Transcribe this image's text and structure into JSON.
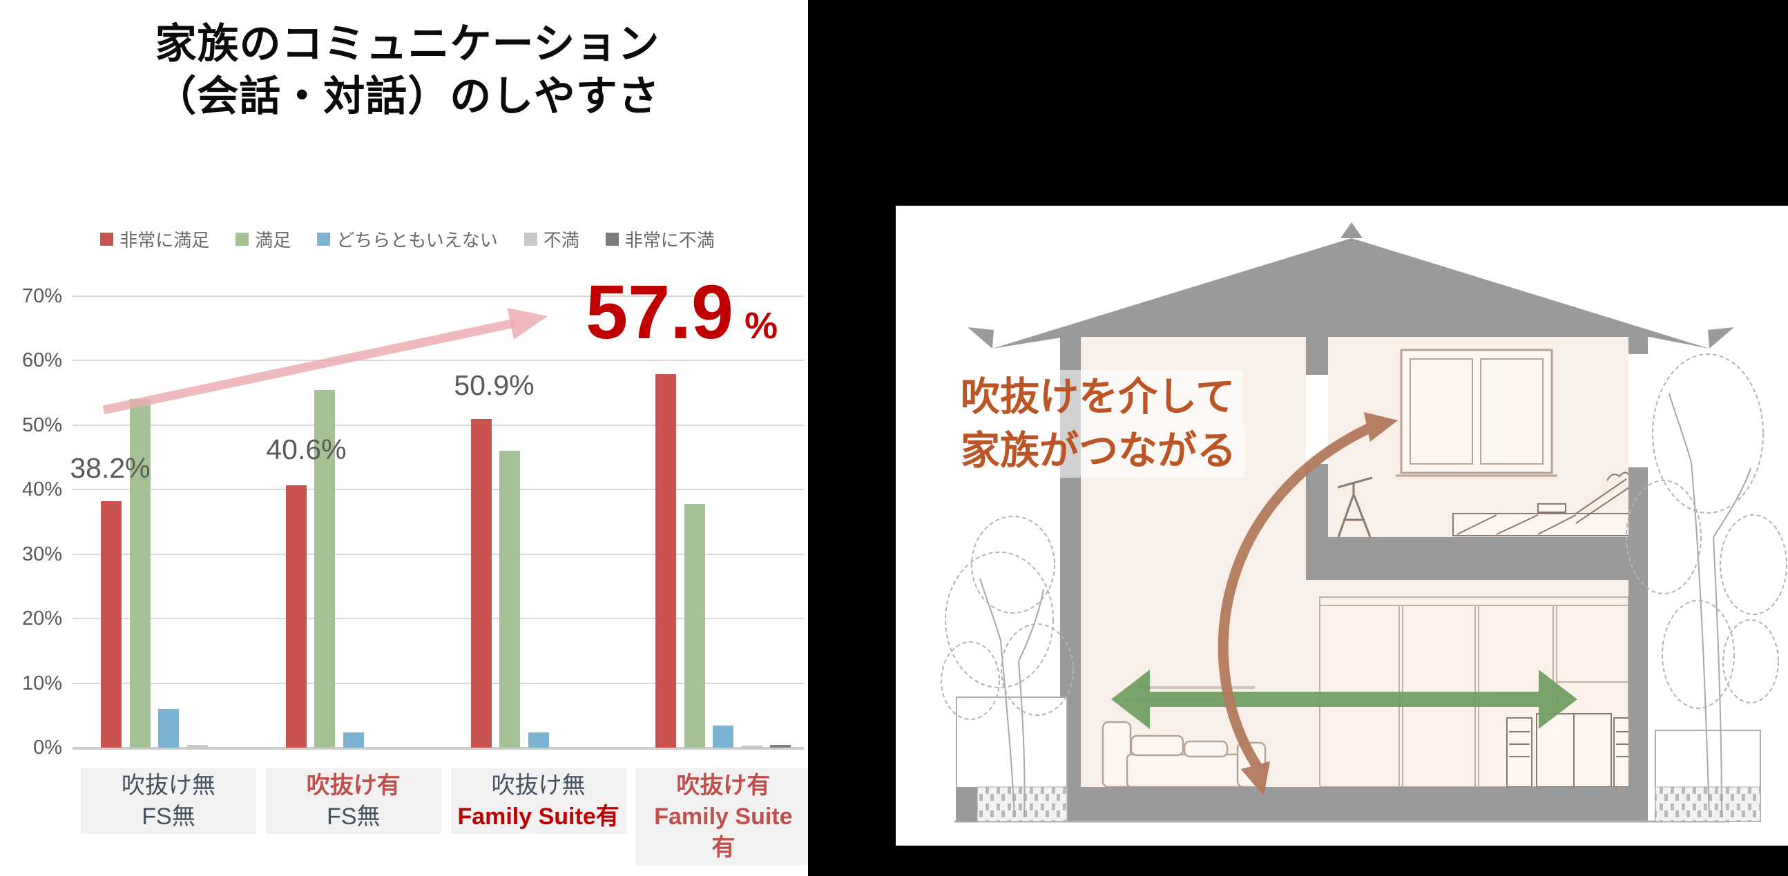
{
  "title": {
    "line1": "家族のコミュニケーション",
    "line2": "（会話・対話）のしやすさ"
  },
  "chart_data": {
    "type": "bar",
    "title": "家族のコミュニケーション（会話・対話）のしやすさ",
    "categories": [
      "吹抜け無 FS無",
      "吹抜け有 FS無",
      "吹抜け無 Family Suite有",
      "吹抜け有 Family Suite有"
    ],
    "series": [
      {
        "name": "非常に満足",
        "color": "#c9534f",
        "values": [
          38.2,
          40.6,
          50.9,
          57.9
        ]
      },
      {
        "name": "満足",
        "color": "#a6c294",
        "values": [
          54.0,
          55.4,
          46.0,
          37.8
        ]
      },
      {
        "name": "どちらともいえない",
        "color": "#7cb3d3",
        "values": [
          6.0,
          2.3,
          2.4,
          3.4
        ]
      },
      {
        "name": "不満",
        "color": "#c7c7c7",
        "values": [
          0.4,
          0,
          0,
          0.3
        ]
      },
      {
        "name": "非常に不満",
        "color": "#7d7d7d",
        "values": [
          0,
          0,
          0,
          0.4
        ]
      }
    ],
    "ylim": [
      0,
      70
    ],
    "yticks": [
      "0%",
      "10%",
      "20%",
      "30%",
      "40%",
      "50%",
      "60%",
      "70%"
    ],
    "grid": true,
    "legend_position": "top",
    "annotations": [
      {
        "text": "38.2%",
        "category_index": 0
      },
      {
        "text": "40.6%",
        "category_index": 1
      },
      {
        "text": "50.9%",
        "category_index": 2
      }
    ],
    "highlight": {
      "value": "57.9",
      "unit": "%",
      "color": "#c00000",
      "category_index": 3
    },
    "trend_arrow_color": "#ecabb0"
  },
  "category_labels": [
    {
      "lines": [
        {
          "text": "吹抜け無",
          "style": "gray"
        },
        {
          "text": "FS無",
          "style": "gray"
        }
      ]
    },
    {
      "lines": [
        {
          "text": "吹抜け有",
          "style": "red"
        },
        {
          "text": "FS無",
          "style": "gray"
        }
      ]
    },
    {
      "lines": [
        {
          "text": "吹抜け無",
          "style": "gray"
        },
        {
          "text": "Family Suite有",
          "style": "darkred"
        }
      ]
    },
    {
      "lines": [
        {
          "text": "吹抜け有",
          "style": "red"
        },
        {
          "text": "Family Suite",
          "style": "red"
        },
        {
          "text": "有",
          "style": "red"
        }
      ]
    }
  ],
  "illustration": {
    "caption": {
      "line1": "吹抜けを介して",
      "line2": "家族がつながる",
      "color": "#bc5526"
    },
    "void_arrow_color": "#b27a5c",
    "floor_arrow_color": "#6f9e60",
    "roof_color": "#9a9a9a",
    "interior_color": "#f9efe9"
  }
}
